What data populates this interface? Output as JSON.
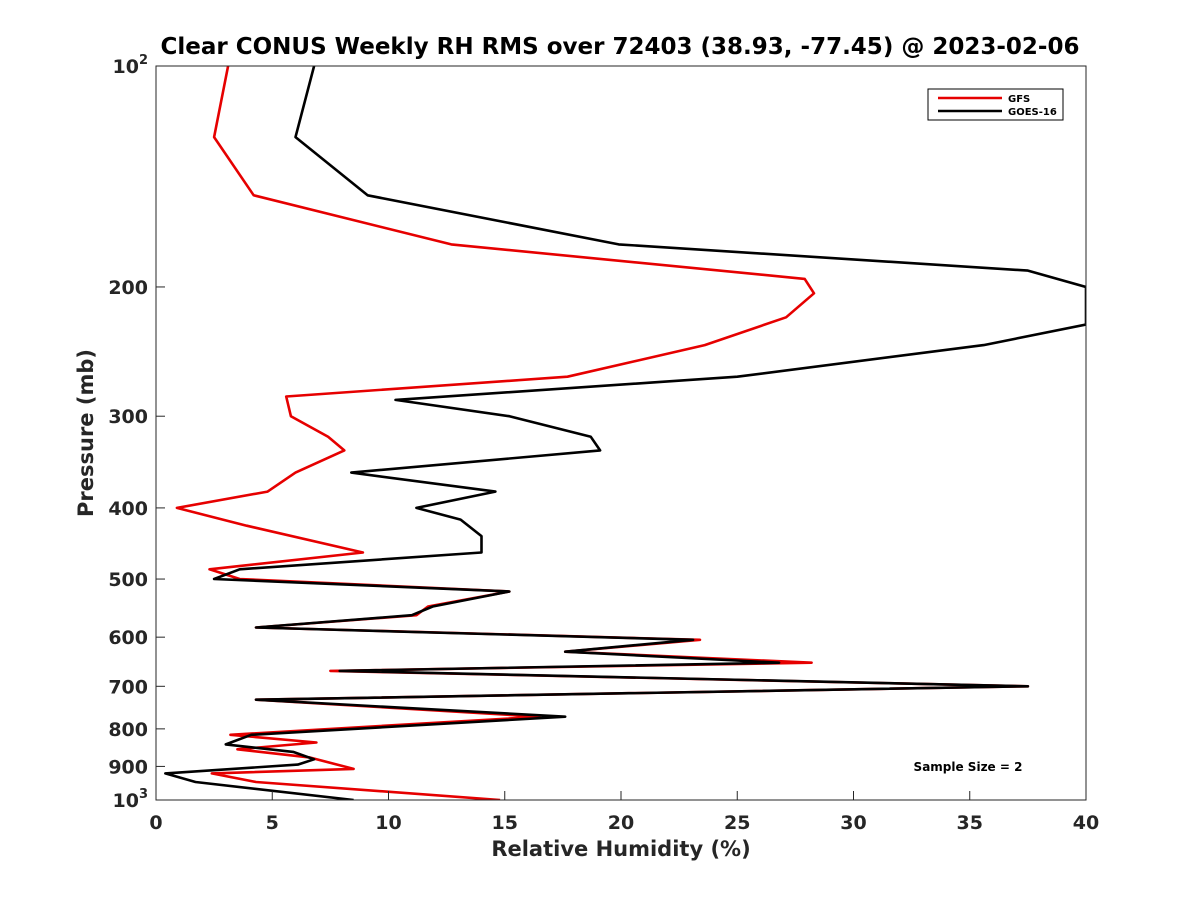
{
  "chart_data": {
    "type": "line",
    "title": "Clear CONUS Weekly RH RMS over 72403 (38.93, -77.45) @ 2023-02-06",
    "xlabel": "Relative Humidity (%)",
    "ylabel": "Pressure (mb)",
    "xlim": [
      0,
      40
    ],
    "ylim": [
      100,
      1000
    ],
    "y_scale": "log",
    "y_reversed": true,
    "x_ticks": [
      0,
      5,
      10,
      15,
      20,
      25,
      30,
      35,
      40
    ],
    "y_ticks": [
      {
        "value": 100,
        "label": "10",
        "exp": "2"
      },
      {
        "value": 200,
        "label": "200"
      },
      {
        "value": 300,
        "label": "300"
      },
      {
        "value": 400,
        "label": "400"
      },
      {
        "value": 500,
        "label": "500"
      },
      {
        "value": 600,
        "label": "600"
      },
      {
        "value": 700,
        "label": "700"
      },
      {
        "value": 800,
        "label": "800"
      },
      {
        "value": 900,
        "label": "900"
      },
      {
        "value": 1000,
        "label": "10",
        "exp": "3"
      }
    ],
    "grid": false,
    "legend_position": "top-right",
    "annotation": "Sample Size = 2",
    "series": [
      {
        "name": "GFS",
        "color": "#e60000",
        "points": [
          [
            3.1,
            100
          ],
          [
            2.5,
            125
          ],
          [
            4.2,
            150
          ],
          [
            12.7,
            175
          ],
          [
            27.9,
            195
          ],
          [
            28.3,
            204
          ],
          [
            27.1,
            220
          ],
          [
            23.6,
            240
          ],
          [
            17.7,
            265
          ],
          [
            5.6,
            282
          ],
          [
            5.8,
            300
          ],
          [
            7.4,
            320
          ],
          [
            8.1,
            334
          ],
          [
            6.0,
            358
          ],
          [
            4.8,
            380
          ],
          [
            0.9,
            400
          ],
          [
            3.9,
            423
          ],
          [
            8.9,
            460
          ],
          [
            2.3,
            485
          ],
          [
            3.6,
            500
          ],
          [
            15.2,
            520
          ],
          [
            11.7,
            545
          ],
          [
            11.2,
            560
          ],
          [
            4.3,
            582
          ],
          [
            23.4,
            605
          ],
          [
            17.6,
            628
          ],
          [
            28.2,
            650
          ],
          [
            7.5,
            667
          ],
          [
            37.5,
            700
          ],
          [
            4.3,
            730
          ],
          [
            16.5,
            770
          ],
          [
            3.2,
            815
          ],
          [
            6.9,
            835
          ],
          [
            3.5,
            853
          ],
          [
            6.6,
            875
          ],
          [
            8.5,
            907
          ],
          [
            2.4,
            920
          ],
          [
            4.3,
            945
          ],
          [
            14.8,
            1000
          ]
        ]
      },
      {
        "name": "GOES-16",
        "color": "#000000",
        "points": [
          [
            6.8,
            100
          ],
          [
            6.0,
            125
          ],
          [
            9.1,
            150
          ],
          [
            19.9,
            175
          ],
          [
            37.5,
            190
          ],
          [
            40.0,
            200
          ],
          [
            40.0,
            225
          ],
          [
            35.6,
            240
          ],
          [
            25.0,
            265
          ],
          [
            10.3,
            285
          ],
          [
            15.2,
            300
          ],
          [
            18.7,
            320
          ],
          [
            19.1,
            334
          ],
          [
            8.4,
            358
          ],
          [
            14.6,
            380
          ],
          [
            11.2,
            400
          ],
          [
            13.1,
            415
          ],
          [
            14.0,
            437
          ],
          [
            14.0,
            460
          ],
          [
            3.6,
            485
          ],
          [
            2.5,
            500
          ],
          [
            15.2,
            520
          ],
          [
            11.9,
            545
          ],
          [
            11.0,
            560
          ],
          [
            4.3,
            582
          ],
          [
            23.1,
            605
          ],
          [
            17.6,
            628
          ],
          [
            26.8,
            650
          ],
          [
            7.9,
            667
          ],
          [
            37.5,
            700
          ],
          [
            4.3,
            730
          ],
          [
            17.6,
            770
          ],
          [
            4.1,
            815
          ],
          [
            3.0,
            840
          ],
          [
            5.9,
            860
          ],
          [
            6.8,
            880
          ],
          [
            6.1,
            895
          ],
          [
            0.4,
            920
          ],
          [
            1.7,
            945
          ],
          [
            8.5,
            1000
          ]
        ]
      }
    ]
  }
}
